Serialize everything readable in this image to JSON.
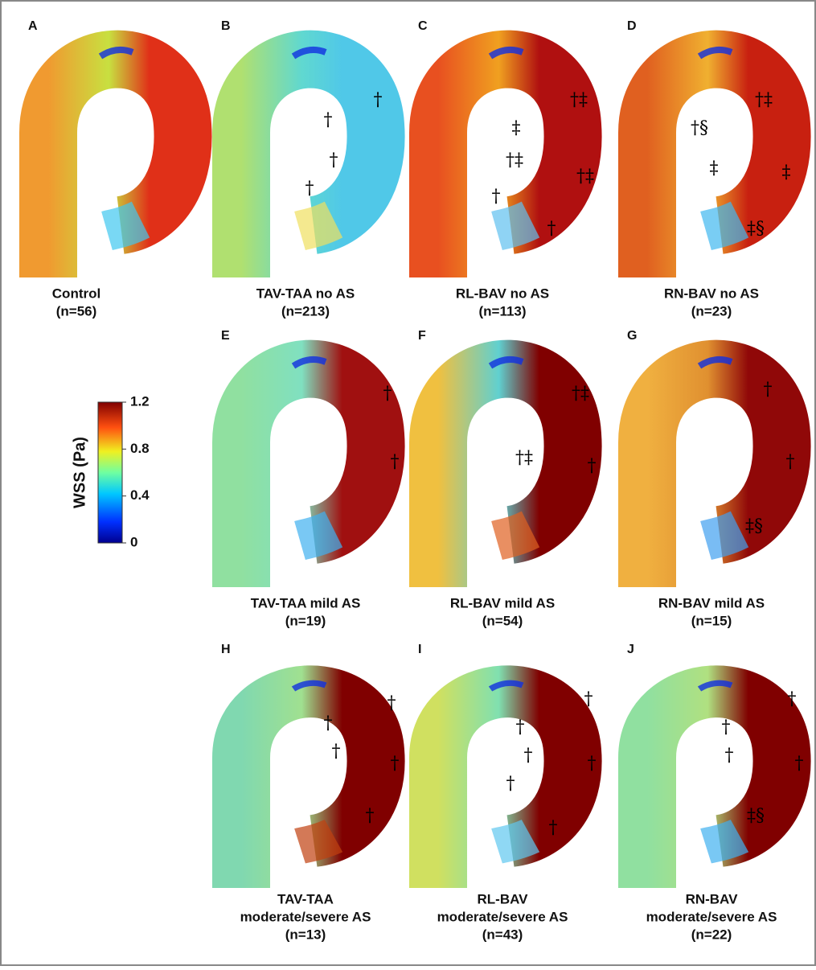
{
  "panels": [
    {
      "letter": "A",
      "label": [
        "Control",
        "(n=56)"
      ],
      "annotations": []
    },
    {
      "letter": "B",
      "label": [
        "TAV-TAA no AS",
        "(n=213)"
      ],
      "annotations": [
        "†",
        "†",
        "†",
        "†"
      ]
    },
    {
      "letter": "C",
      "label": [
        "RL-BAV no AS",
        "(n=113)"
      ],
      "annotations": [
        "†‡",
        "‡",
        "†‡",
        "†‡",
        "†",
        "†"
      ]
    },
    {
      "letter": "D",
      "label": [
        "RN-BAV no AS",
        "(n=23)"
      ],
      "annotations": [
        "†‡",
        "†§",
        "‡",
        "‡",
        "‡§"
      ]
    },
    {
      "letter": "E",
      "label": [
        "TAV-TAA mild AS",
        "(n=19)"
      ],
      "annotations": [
        "†",
        "†"
      ]
    },
    {
      "letter": "F",
      "label": [
        "RL-BAV mild AS",
        "(n=54)"
      ],
      "annotations": [
        "†‡",
        "†‡",
        "†"
      ]
    },
    {
      "letter": "G",
      "label": [
        "RN-BAV mild AS",
        "(n=15)"
      ],
      "annotations": [
        "†",
        "†",
        "‡§"
      ]
    },
    {
      "letter": "H",
      "label": [
        "TAV-TAA",
        "moderate/severe AS",
        "(n=13)"
      ],
      "annotations": [
        "†",
        "†",
        "†",
        "†",
        "†"
      ]
    },
    {
      "letter": "I",
      "label": [
        "RL-BAV",
        "moderate/severe AS",
        "(n=43)"
      ],
      "annotations": [
        "†",
        "†",
        "†",
        "†",
        "†",
        "†"
      ]
    },
    {
      "letter": "J",
      "label": [
        "RN-BAV",
        "moderate/severe AS",
        "(n=22)"
      ],
      "annotations": [
        "†",
        "†",
        "†",
        "†",
        "‡§"
      ]
    }
  ],
  "colorbar": {
    "title": "WSS (Pa)",
    "range": [
      0,
      1.2
    ],
    "ticks": [
      0,
      0.4,
      0.8,
      1.2
    ]
  }
}
